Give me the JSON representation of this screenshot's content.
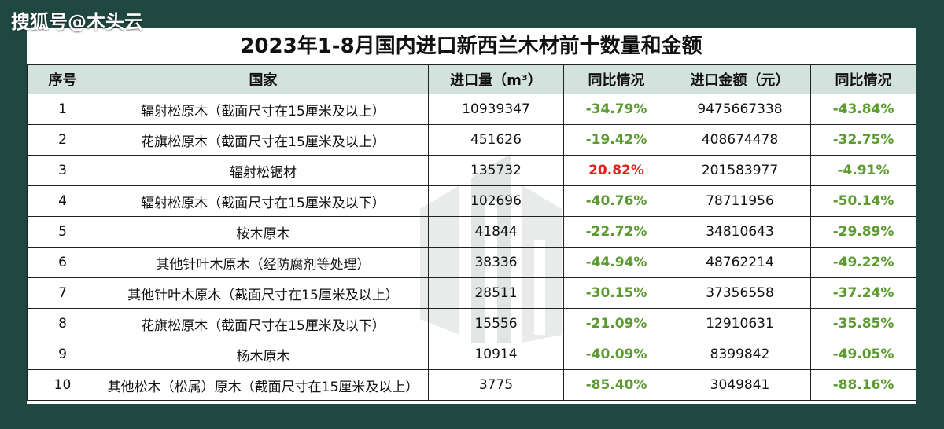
{
  "watermark": "搜狐号@木头云",
  "title": "2023年1-8月国内进口新西兰木材前十数量和金额",
  "table": {
    "headers": [
      "序号",
      "国家",
      "进口量（m³）",
      "同比情况",
      "进口金额（元）",
      "同比情况"
    ],
    "rows": [
      {
        "no": "1",
        "name": "辐射松原木（截面尺寸在15厘米及以上）",
        "volume": "10939347",
        "vol_yoy": "-34.79%",
        "amount": "9475667338",
        "amt_yoy": "-43.84%"
      },
      {
        "no": "2",
        "name": "花旗松原木（截面尺寸在15厘米及以上）",
        "volume": "451626",
        "vol_yoy": "-19.42%",
        "amount": "408674478",
        "amt_yoy": "-32.75%"
      },
      {
        "no": "3",
        "name": "辐射松锯材",
        "volume": "135732",
        "vol_yoy": "20.82%",
        "amount": "201583977",
        "amt_yoy": "-4.91%"
      },
      {
        "no": "4",
        "name": "辐射松原木（截面尺寸在15厘米及以下）",
        "volume": "102696",
        "vol_yoy": "-40.76%",
        "amount": "78711956",
        "amt_yoy": "-50.14%"
      },
      {
        "no": "5",
        "name": "桉木原木",
        "volume": "41844",
        "vol_yoy": "-22.72%",
        "amount": "34810643",
        "amt_yoy": "-29.89%"
      },
      {
        "no": "6",
        "name": "其他针叶木原木（经防腐剂等处理）",
        "volume": "38336",
        "vol_yoy": "-44.94%",
        "amount": "48762214",
        "amt_yoy": "-49.22%"
      },
      {
        "no": "7",
        "name": "其他针叶木原木（截面尺寸在15厘米及以上）",
        "volume": "28511",
        "vol_yoy": "-30.15%",
        "amount": "37356558",
        "amt_yoy": "-37.24%"
      },
      {
        "no": "8",
        "name": "花旗松原木（截面尺寸在15厘米及以下）",
        "volume": "15556",
        "vol_yoy": "-21.09%",
        "amount": "12910631",
        "amt_yoy": "-35.85%"
      },
      {
        "no": "9",
        "name": "杨木原木",
        "volume": "10914",
        "vol_yoy": "-40.09%",
        "amount": "8399842",
        "amt_yoy": "-49.05%"
      },
      {
        "no": "10",
        "name": "其他松木（松属）原木（截面尺寸在15厘米及以上）",
        "volume": "3775",
        "vol_yoy": "-85.40%",
        "amount": "3049841",
        "amt_yoy": "-88.16%"
      }
    ]
  },
  "colors": {
    "frame": "#1f4840",
    "header_bg": "#d3e2dd",
    "negative": "#5a9a2e",
    "positive": "#e0201a"
  }
}
